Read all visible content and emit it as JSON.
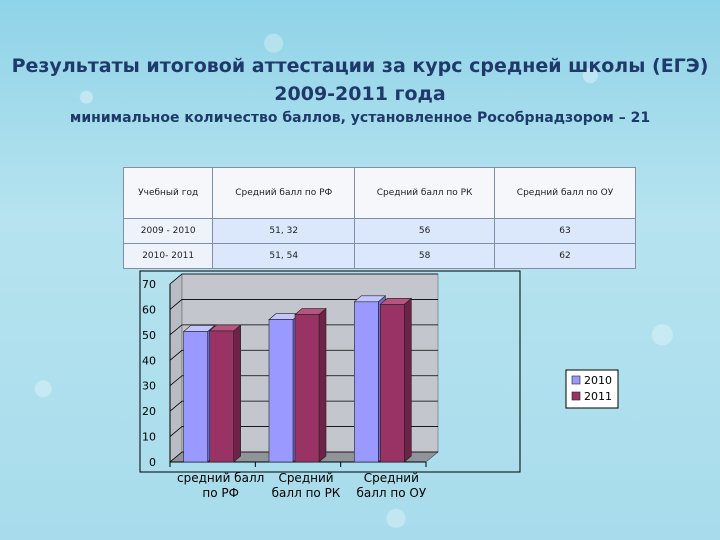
{
  "header": {
    "title_line1": "Результаты итоговой аттестации за курс средней школы (ЕГЭ)",
    "title_line2": "2009-2011 года",
    "subtitle": "минимальное количество баллов, установленное Рособрнадзором – 21"
  },
  "table": {
    "headers": [
      "Учебный год",
      "Средний балл по РФ",
      "Средний балл по РК",
      "Средний балл по ОУ"
    ],
    "rows": [
      [
        "2009 - 2010",
        "51, 32",
        "56",
        "63"
      ],
      [
        "2010- 2011",
        "51, 54",
        "58",
        "62"
      ]
    ]
  },
  "colors": {
    "series_2010": "#9999ff",
    "series_2011": "#993366"
  },
  "chart_data": {
    "type": "bar",
    "categories": [
      "средний балл по РФ",
      "Средний балл по РК",
      "Средний балл по ОУ"
    ],
    "category_lines": [
      [
        "средний балл",
        "по РФ"
      ],
      [
        "Средний",
        "балл по РК"
      ],
      [
        "Средний",
        "балл по ОУ"
      ]
    ],
    "series": [
      {
        "name": "2010",
        "values": [
          51.32,
          56,
          63
        ]
      },
      {
        "name": "2011",
        "values": [
          51.54,
          58,
          62
        ]
      }
    ],
    "ylim": [
      0,
      70
    ],
    "yticks": [
      0,
      10,
      20,
      30,
      40,
      50,
      60,
      70
    ],
    "grid": true,
    "legend": "right",
    "style": "3d"
  }
}
